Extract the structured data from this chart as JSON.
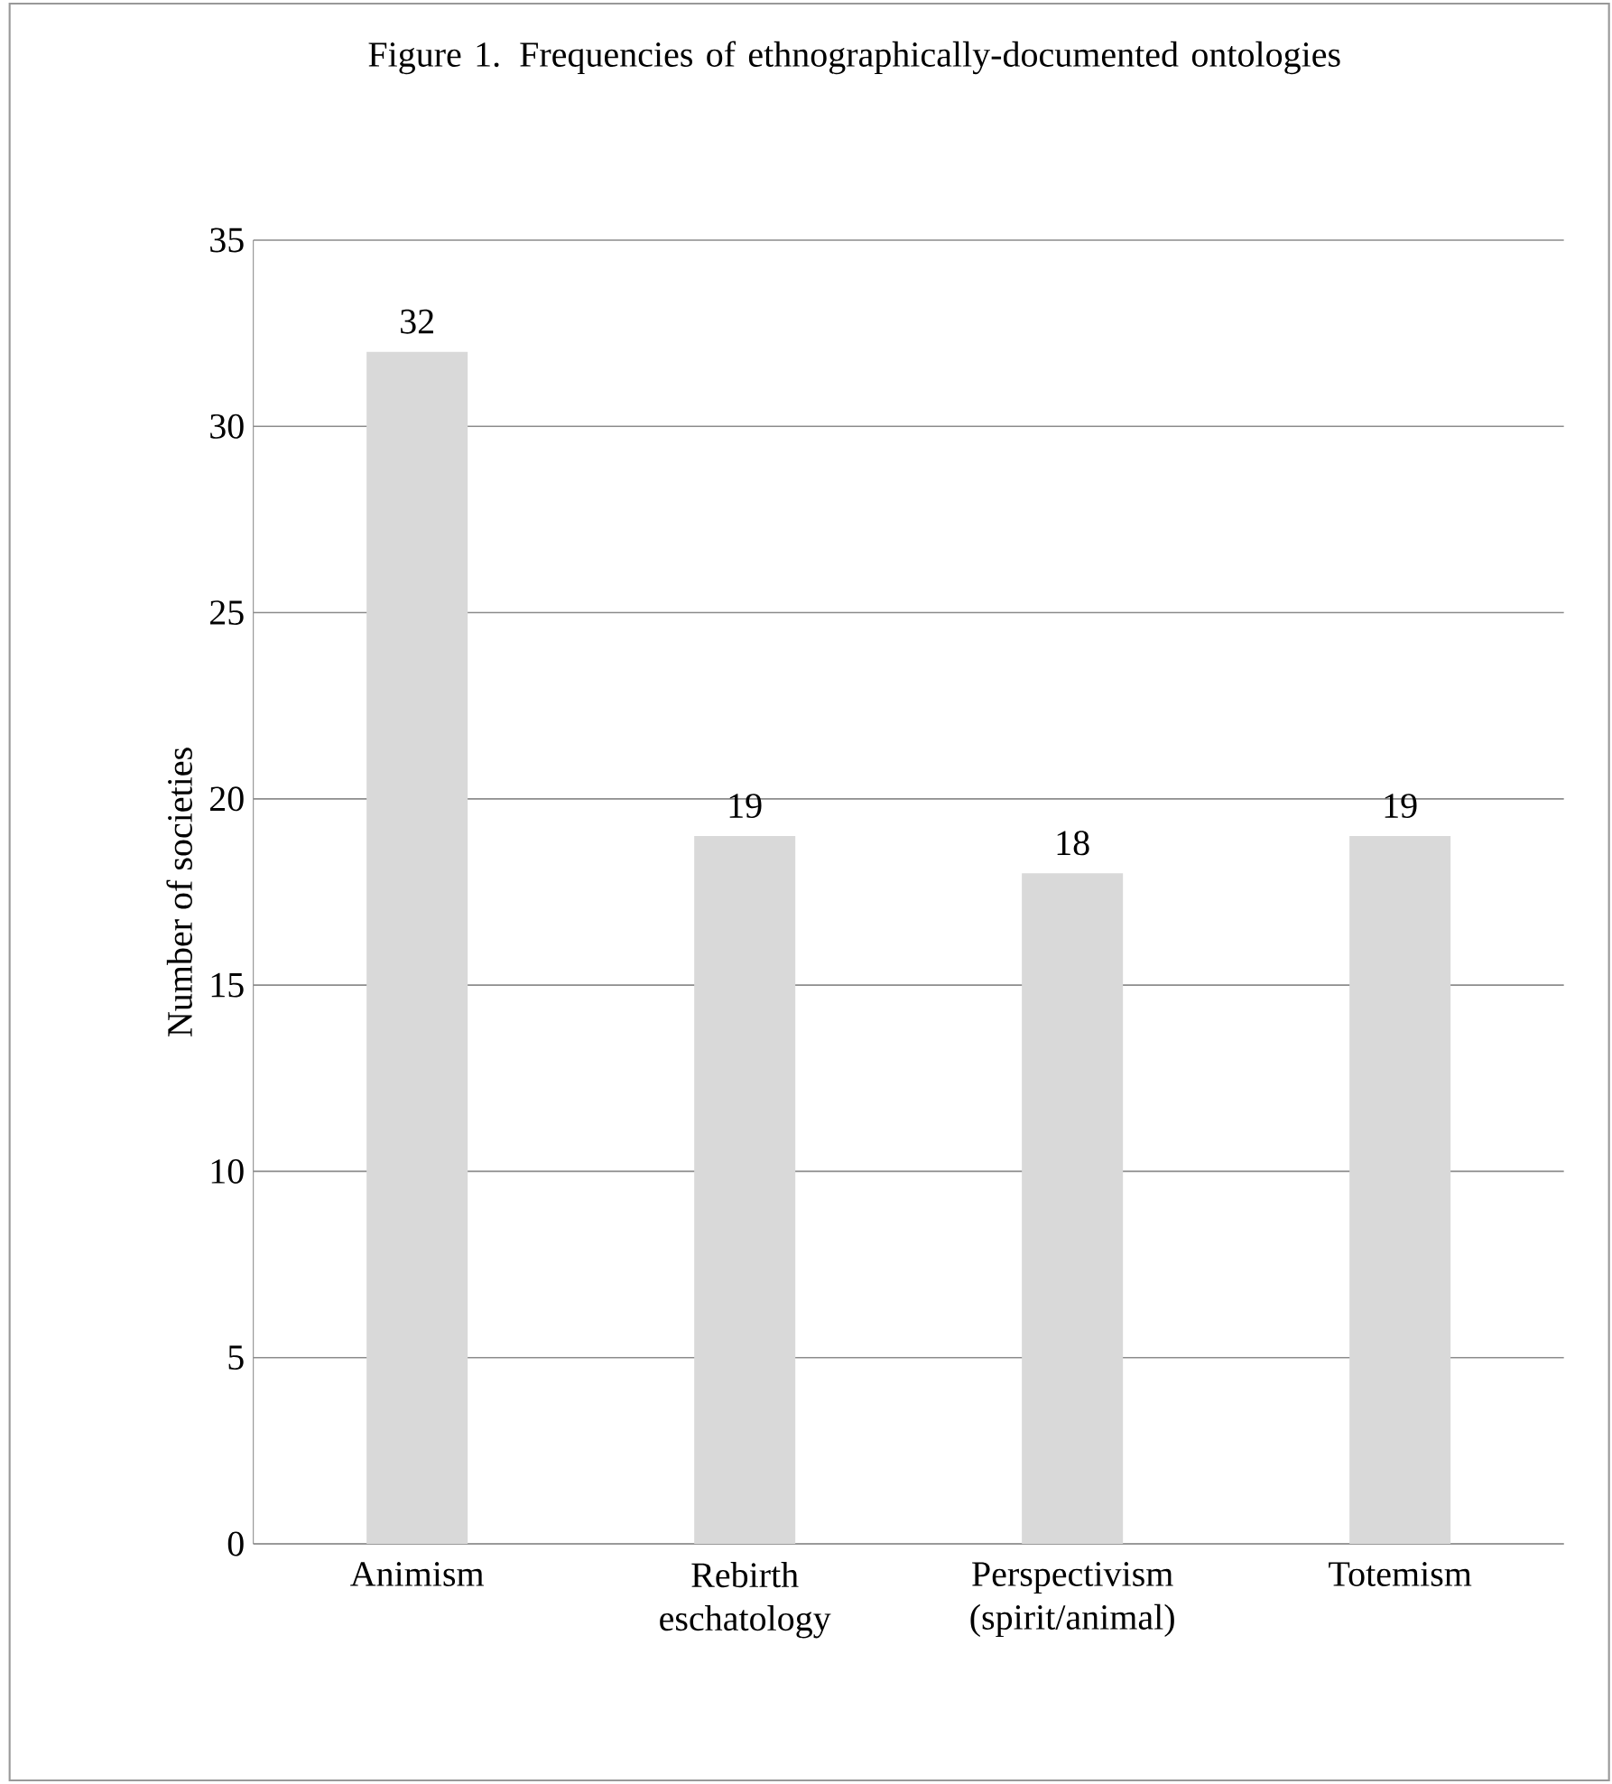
{
  "chart_data": {
    "type": "bar",
    "title": "Figure 1. Frequencies of ethnographically-documented ontologies",
    "ylabel": "Number of societies",
    "categories": [
      "Animism",
      "Rebirth eschatology",
      "Perspectivism (spirit/animal)",
      "Totemism"
    ],
    "values": [
      32,
      19,
      18,
      19
    ],
    "color": "#d9d9d9",
    "ylim": [
      0,
      35
    ],
    "yticks": [
      0,
      5,
      10,
      15,
      20,
      25,
      30,
      35
    ],
    "grid": "y",
    "data_labels": true
  }
}
